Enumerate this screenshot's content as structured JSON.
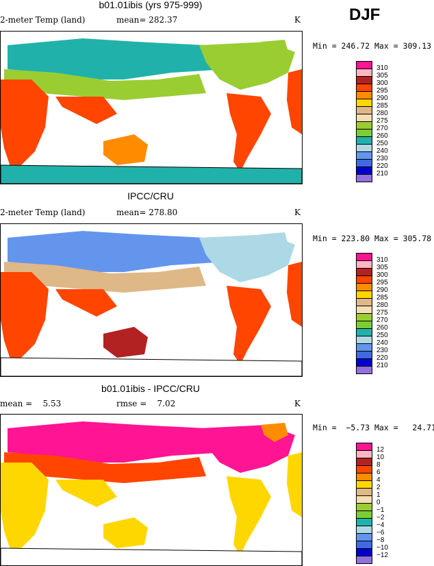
{
  "season": "DJF",
  "panels": [
    {
      "title": "b01.01ibis (yrs 975-999)",
      "left_label": "2-meter Temp (land)",
      "mean_label": "mean= 282.37",
      "right_label": "",
      "units": "K",
      "stats": "Min = 246.72 Max = 309.13",
      "legend_labels": [
        "310",
        "305",
        "300",
        "295",
        "290",
        "285",
        "280",
        "275",
        "270",
        "260",
        "250",
        "240",
        "230",
        "220",
        "210"
      ],
      "legend_colors": [
        "#ff1493",
        "#ffb6c1",
        "#b22222",
        "#ff4500",
        "#ff8c00",
        "#ffd700",
        "#deb887",
        "#f5deb3",
        "#9acd32",
        "#7ccd32",
        "#20b2aa",
        "#add8e6",
        "#6495ed",
        "#4169e1",
        "#0000cd",
        "#9370db"
      ]
    },
    {
      "title": "IPCC/CRU",
      "left_label": "2-meter Temp (land)",
      "mean_label": "mean= 278.80",
      "right_label": "",
      "units": "K",
      "stats": "Min = 223.80 Max = 305.78",
      "legend_labels": [
        "310",
        "305",
        "300",
        "295",
        "290",
        "285",
        "280",
        "275",
        "270",
        "260",
        "250",
        "240",
        "230",
        "220",
        "210"
      ],
      "legend_colors": [
        "#ff1493",
        "#ffb6c1",
        "#b22222",
        "#ff4500",
        "#ff8c00",
        "#ffd700",
        "#deb887",
        "#f5deb3",
        "#9acd32",
        "#7ccd32",
        "#20b2aa",
        "#add8e6",
        "#6495ed",
        "#4169e1",
        "#0000cd",
        "#9370db"
      ]
    },
    {
      "title": "b01.01ibis - IPCC/CRU",
      "left_label": "mean =    5.53",
      "mean_label": "",
      "right_label": "rmse =    7.02",
      "units": "K",
      "stats": "Min =  −5.73 Max =   24.71",
      "legend_labels": [
        "12",
        "10",
        "8",
        "6",
        "4",
        "2",
        "1",
        "0",
        "−1",
        "−2",
        "−4",
        "−6",
        "−8",
        "−10",
        "−12"
      ],
      "legend_colors": [
        "#ff1493",
        "#ffb6c1",
        "#b22222",
        "#ff4500",
        "#ff8c00",
        "#ffd700",
        "#deb887",
        "#f5deb3",
        "#9acd32",
        "#7ccd32",
        "#20b2aa",
        "#add8e6",
        "#6495ed",
        "#4169e1",
        "#0000cd",
        "#9370db"
      ]
    }
  ]
}
